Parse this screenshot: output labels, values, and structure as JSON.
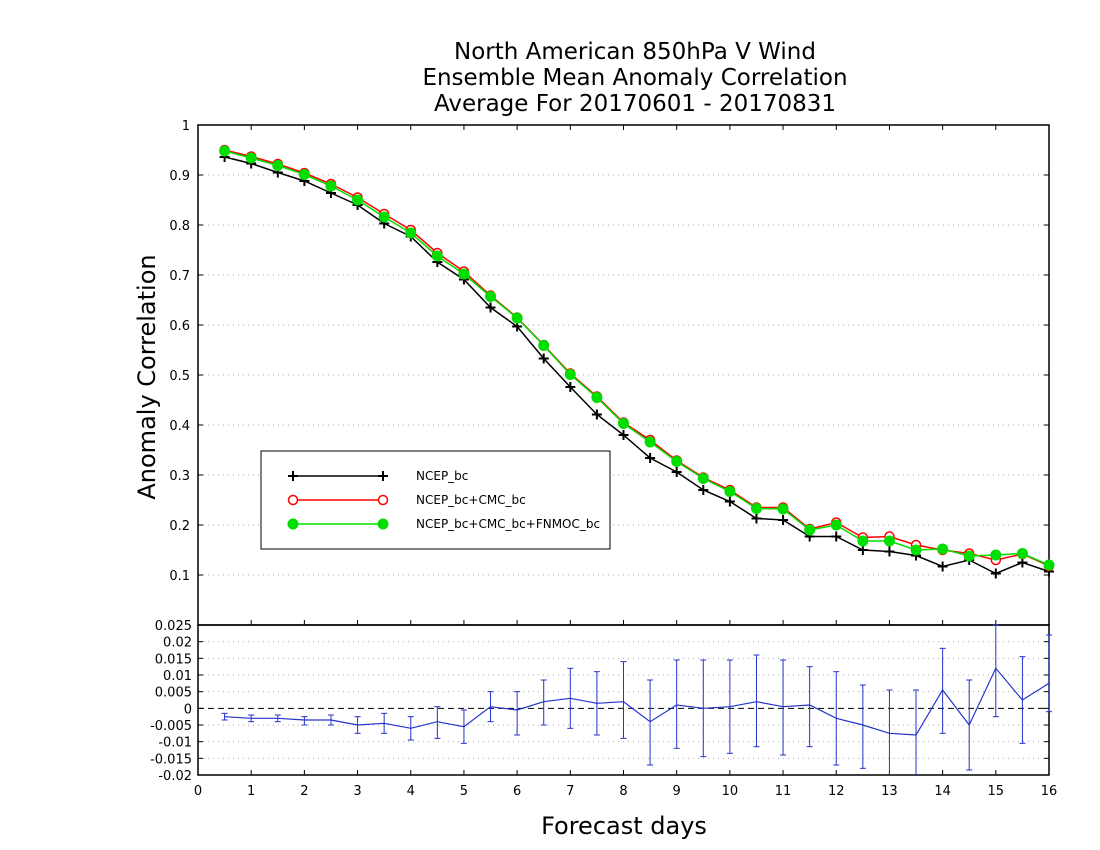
{
  "chart_data": [
    {
      "type": "line",
      "title": [
        "North American 850hPa V Wind",
        "Ensemble Mean Anomaly Correlation",
        "Average For 20170601 - 20170831"
      ],
      "ylabel": "Anomaly Correlation",
      "xlabel": "",
      "xlim": [
        0,
        16
      ],
      "ylim": [
        0,
        1
      ],
      "yticks": [
        "0.1",
        "0.2",
        "0.3",
        "0.4",
        "0.5",
        "0.6",
        "0.7",
        "0.8",
        "0.9",
        "1"
      ],
      "grid": true,
      "legend_position": "left-center",
      "x": [
        0.5,
        1,
        1.5,
        2,
        2.5,
        3,
        3.5,
        4,
        4.5,
        5,
        5.5,
        6,
        6.5,
        7,
        7.5,
        8,
        8.5,
        9,
        9.5,
        10,
        10.5,
        11,
        11.5,
        12,
        12.5,
        13,
        13.5,
        14,
        14.5,
        15,
        15.5,
        16
      ],
      "series": [
        {
          "name": "NCEP_bc",
          "color": "#000000",
          "marker": "plus",
          "values": [
            0.936,
            0.923,
            0.905,
            0.888,
            0.864,
            0.84,
            0.803,
            0.777,
            0.726,
            0.691,
            0.635,
            0.597,
            0.533,
            0.476,
            0.421,
            0.38,
            0.334,
            0.306,
            0.27,
            0.247,
            0.213,
            0.21,
            0.177,
            0.177,
            0.15,
            0.147,
            0.139,
            0.117,
            0.13,
            0.103,
            0.125,
            0.107
          ]
        },
        {
          "name": "NCEP_bc+CMC_bc",
          "color": "#ff0000",
          "marker": "open-circle",
          "values": [
            0.95,
            0.937,
            0.922,
            0.904,
            0.882,
            0.855,
            0.822,
            0.79,
            0.744,
            0.707,
            0.659,
            0.615,
            0.56,
            0.503,
            0.457,
            0.405,
            0.37,
            0.329,
            0.295,
            0.27,
            0.235,
            0.235,
            0.192,
            0.205,
            0.175,
            0.177,
            0.16,
            0.15,
            0.143,
            0.13,
            0.142,
            0.118
          ]
        },
        {
          "name": "NCEP_bc+CMC_bc+FNMOC_bc",
          "color": "#00dd00",
          "marker": "filled-circle",
          "values": [
            0.948,
            0.934,
            0.919,
            0.901,
            0.878,
            0.85,
            0.816,
            0.784,
            0.738,
            0.702,
            0.657,
            0.614,
            0.559,
            0.501,
            0.455,
            0.403,
            0.366,
            0.327,
            0.293,
            0.267,
            0.233,
            0.232,
            0.19,
            0.2,
            0.168,
            0.168,
            0.15,
            0.152,
            0.138,
            0.14,
            0.143,
            0.12
          ]
        }
      ]
    },
    {
      "type": "line",
      "xlabel": "Forecast days",
      "ylabel": "",
      "xlim": [
        0,
        16
      ],
      "ylim": [
        -0.02,
        0.025
      ],
      "xticks": [
        "0",
        "1",
        "2",
        "3",
        "4",
        "5",
        "6",
        "7",
        "8",
        "9",
        "10",
        "11",
        "12",
        "13",
        "14",
        "15",
        "16"
      ],
      "yticks": [
        "-0.02",
        "-0.015",
        "-0.01",
        "-0.005",
        "0",
        "0.005",
        "0.01",
        "0.015",
        "0.02",
        "0.025"
      ],
      "zero_line": true,
      "x": [
        0.5,
        1,
        1.5,
        2,
        2.5,
        3,
        3.5,
        4,
        4.5,
        5,
        5.5,
        6,
        6.5,
        7,
        7.5,
        8,
        8.5,
        9,
        9.5,
        10,
        10.5,
        11,
        11.5,
        12,
        12.5,
        13,
        13.5,
        14,
        14.5,
        15,
        15.5,
        16
      ],
      "series": [
        {
          "name": "difference",
          "color": "#2233cc",
          "values": [
            -0.0025,
            -0.003,
            -0.003,
            -0.0035,
            -0.0035,
            -0.005,
            -0.0045,
            -0.006,
            -0.004,
            -0.0055,
            0.0005,
            -0.0005,
            0.002,
            0.003,
            0.0015,
            0.002,
            -0.004,
            0.001,
            0.0,
            0.0005,
            0.002,
            0.0005,
            0.001,
            -0.003,
            -0.005,
            -0.0075,
            -0.008,
            0.0055,
            -0.005,
            0.012,
            0.0025,
            0.0075
          ],
          "error_low": [
            -0.0035,
            -0.004,
            -0.004,
            -0.005,
            -0.005,
            -0.0075,
            -0.0075,
            -0.0095,
            -0.009,
            -0.0105,
            -0.004,
            -0.008,
            -0.005,
            -0.006,
            -0.008,
            -0.009,
            -0.017,
            -0.012,
            -0.0145,
            -0.0135,
            -0.0115,
            -0.014,
            -0.0115,
            -0.017,
            -0.018,
            -0.0205,
            -0.0205,
            -0.0075,
            -0.0185,
            -0.0025,
            -0.0105,
            -0.001
          ],
          "error_high": [
            -0.0015,
            -0.002,
            -0.002,
            -0.0025,
            -0.002,
            -0.0025,
            -0.0015,
            -0.0025,
            0.0005,
            -0.0005,
            0.005,
            0.005,
            0.0085,
            0.012,
            0.011,
            0.014,
            0.0085,
            0.0145,
            0.0145,
            0.0145,
            0.016,
            0.0145,
            0.0125,
            0.011,
            0.007,
            0.0055,
            0.0055,
            0.018,
            0.0085,
            0.025,
            0.0155,
            0.022
          ]
        }
      ]
    }
  ]
}
